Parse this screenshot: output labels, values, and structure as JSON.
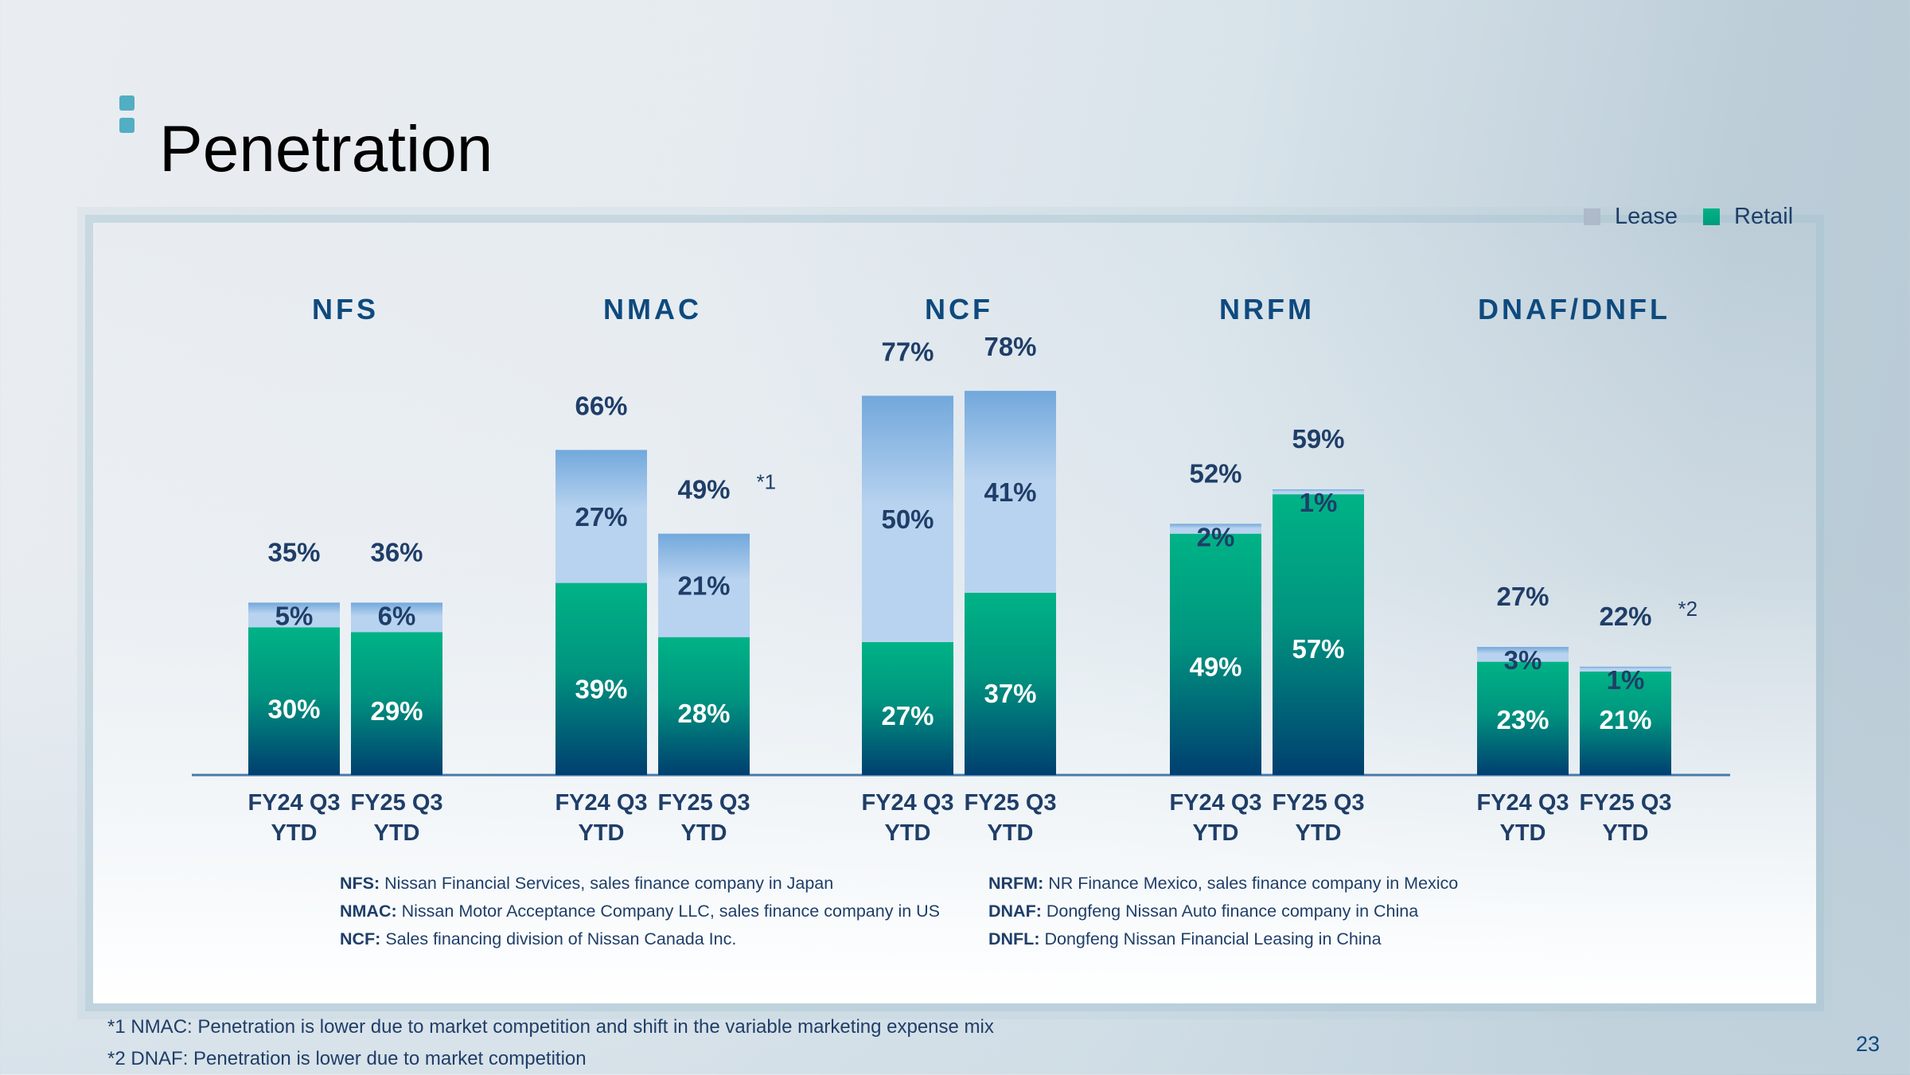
{
  "slide": {
    "title": "Penetration",
    "page_number": "23"
  },
  "legend": [
    {
      "label": "Lease",
      "color": "#aeb9c9"
    },
    {
      "label": "Retail",
      "color": "#00b386"
    }
  ],
  "colors": {
    "retail_top": "#00b386",
    "retail_bottom": "#003f70",
    "lease_top": "#72a8dc",
    "lease_bottom": "#b8d3ef",
    "axis": "#4a7aa8",
    "label_dark": "#1f3e68",
    "label_light": "#ffffff"
  },
  "chart_data": {
    "type": "bar",
    "stacked": true,
    "title": "Penetration",
    "xlabel": "",
    "ylabel": "",
    "ylim": [
      0,
      80
    ],
    "grid": false,
    "legend_position": "top-right",
    "series_names": [
      "Retail",
      "Lease"
    ],
    "groups": [
      {
        "name": "NFS",
        "bars": [
          {
            "category": "FY24 Q3 YTD",
            "retail": 30,
            "lease": 5,
            "total": 35,
            "note": ""
          },
          {
            "category": "FY25 Q3 YTD",
            "retail": 29,
            "lease": 6,
            "total": 36,
            "note": ""
          }
        ]
      },
      {
        "name": "NMAC",
        "bars": [
          {
            "category": "FY24 Q3 YTD",
            "retail": 39,
            "lease": 27,
            "total": 66,
            "note": ""
          },
          {
            "category": "FY25 Q3 YTD",
            "retail": 28,
            "lease": 21,
            "total": 49,
            "note": "*1"
          }
        ]
      },
      {
        "name": "NCF",
        "bars": [
          {
            "category": "FY24 Q3 YTD",
            "retail": 27,
            "lease": 50,
            "total": 77,
            "note": ""
          },
          {
            "category": "FY25 Q3 YTD",
            "retail": 37,
            "lease": 41,
            "total": 78,
            "note": ""
          }
        ]
      },
      {
        "name": "NRFM",
        "bars": [
          {
            "category": "FY24 Q3 YTD",
            "retail": 49,
            "lease": 2,
            "total": 52,
            "note": ""
          },
          {
            "category": "FY25 Q3 YTD",
            "retail": 57,
            "lease": 1,
            "total": 59,
            "note": ""
          }
        ]
      },
      {
        "name": "DNAF/DNFL",
        "bars": [
          {
            "category": "FY24 Q3 YTD",
            "retail": 23,
            "lease": 3,
            "total": 27,
            "note": ""
          },
          {
            "category": "FY25 Q3 YTD",
            "retail": 21,
            "lease": 1,
            "total": 22,
            "note": "*2"
          }
        ]
      }
    ],
    "category_labels": [
      [
        "FY24 Q3",
        "YTD"
      ],
      [
        "FY25 Q3",
        "YTD"
      ]
    ]
  },
  "glossary": {
    "left": [
      {
        "abbr": "NFS:",
        "text": " Nissan Financial Services, sales finance company in Japan"
      },
      {
        "abbr": "NMAC:",
        "text": " Nissan Motor Acceptance Company LLC, sales finance company in US"
      },
      {
        "abbr": "NCF:",
        "text": " Sales financing division of Nissan Canada Inc."
      }
    ],
    "right": [
      {
        "abbr": "NRFM:",
        "text": " NR Finance Mexico, sales finance company in Mexico"
      },
      {
        "abbr": "DNAF:",
        "text": " Dongfeng Nissan Auto finance company in China"
      },
      {
        "abbr": "DNFL:",
        "text": " Dongfeng Nissan Financial Leasing in China"
      }
    ]
  },
  "footnotes": [
    "*1 NMAC: Penetration is lower due to market competition and shift in the variable marketing expense mix",
    "*2 DNAF: Penetration is lower due to market competition"
  ]
}
